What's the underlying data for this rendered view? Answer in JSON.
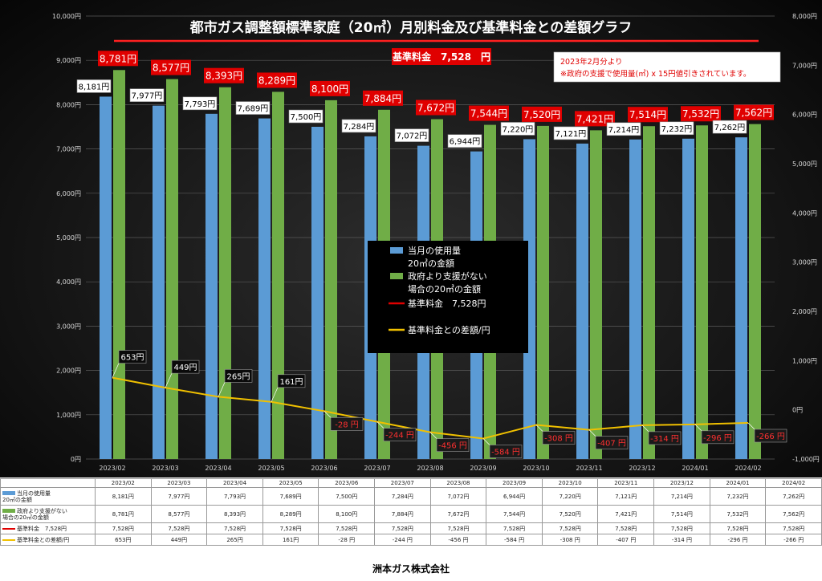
{
  "chart_data": {
    "type": "bar",
    "title": "都市ガス調整額標準家庭（20㎥）月別料金及び基準料金との差額グラフ",
    "badge": "基準料金　7,528　円",
    "note_line1": "2023年2月分より",
    "note_line2": "※政府の支援で使用量(㎥) x 15円値引きされています。",
    "categories": [
      "2023/02",
      "2023/03",
      "2023/04",
      "2023/05",
      "2023/06",
      "2023/07",
      "2023/08",
      "2023/09",
      "2023/10",
      "2023/11",
      "2023/12",
      "2024/01",
      "2024/02"
    ],
    "series": [
      {
        "name": "当月の使用量　20㎥の金額",
        "values": [
          8181,
          7977,
          7793,
          7689,
          7500,
          7284,
          7072,
          6944,
          7220,
          7121,
          7214,
          7232,
          7262
        ]
      },
      {
        "name": "政府より支援がない場合の20㎥の金額",
        "values": [
          8781,
          8577,
          8393,
          8289,
          8100,
          7884,
          7672,
          7544,
          7520,
          7421,
          7514,
          7532,
          7562
        ]
      },
      {
        "name": "基準料金　7,528円",
        "values": [
          7528,
          7528,
          7528,
          7528,
          7528,
          7528,
          7528,
          7528,
          7528,
          7528,
          7528,
          7528,
          7528
        ]
      },
      {
        "name": "基準料金との差額/円",
        "values": [
          653,
          449,
          265,
          161,
          -28,
          -244,
          -456,
          -584,
          -308,
          -407,
          -314,
          -296,
          -266
        ]
      }
    ],
    "bar_labels_blue": [
      "8,181円",
      "7,977円",
      "7,793円",
      "7,689円",
      "7,500円",
      "7,284円",
      "7,072円",
      "6,944円",
      "7,220円",
      "7,121円",
      "7,214円",
      "7,232円",
      "7,262円"
    ],
    "bar_labels_green": [
      "8,781円",
      "8,577円",
      "8,393円",
      "8,289円",
      "8,100円",
      "7,884円",
      "7,672円",
      "7,544円",
      "7,520円",
      "7,421円",
      "7,514円",
      "7,532円",
      "7,562円"
    ],
    "diff_labels": [
      "653円",
      "449円",
      "265円",
      "161円",
      "-28 円",
      "-244 円",
      "-456 円",
      "-584 円",
      "-308 円",
      "-407 円",
      "-314 円",
      "-296 円",
      "-266 円"
    ],
    "legend": [
      {
        "line1": "当月の使用量",
        "line2": "20㎥の金額",
        "kind": "bar",
        "color": "#5b9bd5"
      },
      {
        "line1": "政府より支援がない",
        "line2": "場合の20㎥の金額",
        "kind": "bar",
        "color": "#70ad47"
      },
      {
        "line1": "基準料金　7,528円",
        "line2": "",
        "kind": "line",
        "color": "#e00000"
      },
      {
        "line1": "基準料金との差額/円",
        "line2": "",
        "kind": "line",
        "color": "#f0c000"
      }
    ],
    "y_left_ticks": [
      "0円",
      "1,000円",
      "2,000円",
      "3,000円",
      "4,000円",
      "5,000円",
      "6,000円",
      "7,000円",
      "8,000円",
      "9,000円",
      "10,000円"
    ],
    "y_right_ticks": [
      "-1,000円",
      "0円",
      "1,000円",
      "2,000円",
      "3,000円",
      "4,000円",
      "5,000円",
      "6,000円",
      "7,000円",
      "8,000円"
    ],
    "ylim_left": [
      0,
      10000
    ],
    "ylim_right": [
      -1000,
      8000
    ],
    "grid": true,
    "legend_position": "center",
    "colors": {
      "blue": "#5b9bd5",
      "green": "#70ad47",
      "base": "#e00000",
      "diff": "#f0c000",
      "label_red": "#e00000"
    }
  },
  "table": {
    "rows": [
      {
        "label": "当月の使用量\n20㎥の金額",
        "swatch": "#5b9bd5",
        "kind": "bar",
        "cells": [
          "8,181円",
          "7,977円",
          "7,793円",
          "7,689円",
          "7,500円",
          "7,284円",
          "7,072円",
          "6,944円",
          "7,220円",
          "7,121円",
          "7,214円",
          "7,232円",
          "7,262円"
        ]
      },
      {
        "label": "政府より支援がない\n場合の20㎥の金額",
        "swatch": "#70ad47",
        "kind": "bar",
        "cells": [
          "8,781円",
          "8,577円",
          "8,393円",
          "8,289円",
          "8,100円",
          "7,884円",
          "7,672円",
          "7,544円",
          "7,520円",
          "7,421円",
          "7,514円",
          "7,532円",
          "7,562円"
        ]
      },
      {
        "label": "基準料金　7,528円",
        "swatch": "#e00000",
        "kind": "line",
        "cells": [
          "7,528円",
          "7,528円",
          "7,528円",
          "7,528円",
          "7,528円",
          "7,528円",
          "7,528円",
          "7,528円",
          "7,528円",
          "7,528円",
          "7,528円",
          "7,528円",
          "7,528円"
        ]
      },
      {
        "label": "基準料金との差額/円",
        "swatch": "#f0c000",
        "kind": "line",
        "cells": [
          "653円",
          "449円",
          "265円",
          "161円",
          "-28 円",
          "-244 円",
          "-456 円",
          "-584 円",
          "-308 円",
          "-407 円",
          "-314 円",
          "-296 円",
          "-266 円"
        ]
      }
    ]
  },
  "footer": {
    "company": "洲本ガス株式会社"
  }
}
